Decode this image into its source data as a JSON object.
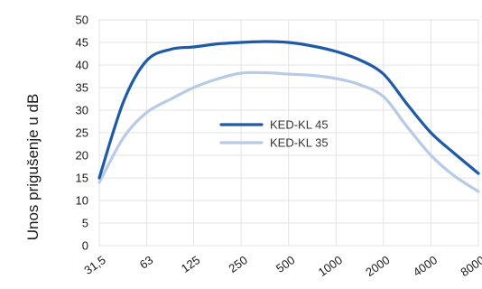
{
  "chart_data": {
    "type": "line",
    "ylabel": "Unos prigušenje u dB",
    "xlabel": "",
    "categories": [
      "31,5",
      "63",
      "125",
      "250",
      "500",
      "1000",
      "2000",
      "4000",
      "8000"
    ],
    "yticks": [
      "0",
      "5",
      "10",
      "15",
      "20",
      "25",
      "30",
      "35",
      "40",
      "45",
      "50"
    ],
    "ylim": [
      0,
      50
    ],
    "grid": true,
    "legend_position": "center",
    "series": [
      {
        "name": "KED-KL 45",
        "color": "#1f5aa6",
        "x": [
          "31,5",
          "45",
          "63",
          "90",
          "125",
          "180",
          "250",
          "355",
          "500",
          "710",
          "1000",
          "1400",
          "2000",
          "2800",
          "4000",
          "5600",
          "8000"
        ],
        "values": [
          15,
          32,
          41,
          43.5,
          44,
          44.7,
          45,
          45.2,
          45,
          44.2,
          43,
          41.2,
          38,
          31.5,
          25,
          20.5,
          16
        ]
      },
      {
        "name": "KED-KL 35",
        "color": "#b7cbe6",
        "x": [
          "31,5",
          "45",
          "63",
          "90",
          "125",
          "180",
          "250",
          "355",
          "500",
          "710",
          "1000",
          "1400",
          "2000",
          "2800",
          "4000",
          "5600",
          "8000"
        ],
        "values": [
          14,
          24,
          29.5,
          32.5,
          35,
          37,
          38.2,
          38.3,
          38,
          37.7,
          37,
          35.7,
          33,
          26.5,
          20,
          15.5,
          12
        ]
      }
    ]
  }
}
